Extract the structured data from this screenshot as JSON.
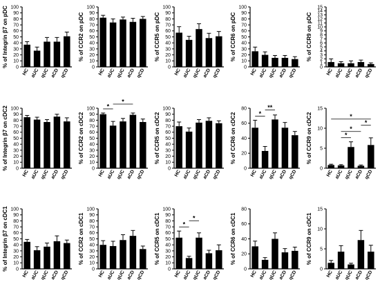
{
  "categories": [
    "HC",
    "aUC",
    "qUC",
    "aCD",
    "qCD"
  ],
  "chart_data": [
    {
      "type": "bar",
      "ylabel": "% of Integrin β7 on pDC",
      "ylim": [
        0,
        100
      ],
      "yticks": [
        0,
        10,
        20,
        30,
        40,
        50,
        60,
        70,
        80,
        90,
        100
      ],
      "values": [
        37,
        27,
        42,
        42,
        51
      ],
      "errors": [
        5,
        6,
        7,
        7,
        7
      ],
      "sig": []
    },
    {
      "type": "bar",
      "ylabel": "% of CCR2 on pDC",
      "ylim": [
        0,
        100
      ],
      "yticks": [
        0,
        10,
        20,
        30,
        40,
        50,
        60,
        70,
        80,
        90,
        100
      ],
      "values": [
        82,
        74,
        79,
        75,
        80
      ],
      "errors": [
        4,
        6,
        4,
        6,
        4
      ],
      "sig": []
    },
    {
      "type": "bar",
      "ylabel": "% of CCR5 on pDC",
      "ylim": [
        0,
        100
      ],
      "yticks": [
        0,
        10,
        20,
        30,
        40,
        50,
        60,
        70,
        80,
        90,
        100
      ],
      "values": [
        57,
        45,
        63,
        48,
        51
      ],
      "errors": [
        10,
        6,
        9,
        8,
        8
      ],
      "sig": []
    },
    {
      "type": "bar",
      "ylabel": "% of CCR6 on pDC",
      "ylim": [
        0,
        100
      ],
      "yticks": [
        0,
        10,
        20,
        30,
        40,
        50,
        60,
        70,
        80,
        90,
        100
      ],
      "values": [
        26,
        20,
        15,
        15,
        13
      ],
      "errors": [
        7,
        5,
        4,
        4,
        4
      ],
      "sig": []
    },
    {
      "type": "bar",
      "ylabel": "% of CCR9 on pDC",
      "ylim": [
        0,
        15
      ],
      "yticks": [
        0,
        1,
        2,
        3,
        4,
        5,
        6,
        7,
        8,
        9,
        10,
        11,
        12,
        13,
        14,
        15
      ],
      "values": [
        1.2,
        0.9,
        0.9,
        1.2,
        0.7
      ],
      "errors": [
        0.8,
        0.4,
        0.6,
        0.5,
        0.3
      ],
      "sig": []
    },
    {
      "type": "bar",
      "ylabel": "% of Integrin β7 on cDC2",
      "ylim": [
        0,
        100
      ],
      "yticks": [
        0,
        10,
        20,
        30,
        40,
        50,
        60,
        70,
        80,
        90,
        100
      ],
      "values": [
        85,
        81,
        77,
        86,
        78
      ],
      "errors": [
        3,
        4,
        4,
        4,
        6
      ],
      "sig": []
    },
    {
      "type": "bar",
      "ylabel": "% of CCR2 on cDC2",
      "ylim": [
        0,
        100
      ],
      "yticks": [
        0,
        10,
        20,
        30,
        40,
        50,
        60,
        70,
        80,
        90,
        100
      ],
      "values": [
        90,
        71,
        78,
        89,
        77
      ],
      "errors": [
        2,
        7,
        5,
        3,
        5
      ],
      "sig": [
        {
          "from": 0,
          "to": 1,
          "label": "*"
        },
        {
          "from": 1,
          "to": 3,
          "label": "*"
        }
      ]
    },
    {
      "type": "bar",
      "ylabel": "% of CCR5 on cDC2",
      "ylim": [
        0,
        100
      ],
      "yticks": [
        0,
        10,
        20,
        30,
        40,
        50,
        60,
        70,
        80,
        90,
        100
      ],
      "values": [
        70,
        61,
        76,
        79,
        75
      ],
      "errors": [
        7,
        6,
        5,
        5,
        4
      ],
      "sig": []
    },
    {
      "type": "bar",
      "ylabel": "% of CCR6 on cDC2",
      "ylim": [
        0,
        80
      ],
      "yticks": [
        0,
        20,
        40,
        60,
        80
      ],
      "values": [
        54,
        23,
        65,
        54,
        44
      ],
      "errors": [
        10,
        6,
        6,
        7,
        5
      ],
      "sig": [
        {
          "from": 0,
          "to": 1,
          "label": "*"
        },
        {
          "from": 1,
          "to": 2,
          "label": "**"
        }
      ]
    },
    {
      "type": "bar",
      "ylabel": "% of CCR9 on cDC2",
      "ylim": [
        0,
        15
      ],
      "yticks": [
        0,
        5,
        10,
        15
      ],
      "values": [
        0.8,
        0.7,
        5.3,
        0.6,
        5.8
      ],
      "errors": [
        0.2,
        0.2,
        1.3,
        0.2,
        1.8
      ],
      "sig": [
        {
          "from": 1,
          "to": 2,
          "label": "*"
        },
        {
          "from": 1,
          "to": 3,
          "label": "*"
        },
        {
          "from": 3,
          "to": 4,
          "label": "*"
        },
        {
          "from": 0,
          "to": 4,
          "label": "*"
        }
      ]
    },
    {
      "type": "bar",
      "ylabel": "% of Integrin β7 on cDC1",
      "ylim": [
        0,
        100
      ],
      "yticks": [
        0,
        10,
        20,
        30,
        40,
        50,
        60,
        70,
        80,
        90,
        100
      ],
      "values": [
        45,
        31,
        37,
        46,
        43
      ],
      "errors": [
        4,
        6,
        6,
        9,
        5
      ],
      "sig": []
    },
    {
      "type": "bar",
      "ylabel": "% of CCR2 on cDC1",
      "ylim": [
        0,
        100
      ],
      "yticks": [
        0,
        10,
        20,
        30,
        40,
        50,
        60,
        70,
        80,
        90,
        100
      ],
      "values": [
        40,
        38,
        48,
        55,
        33
      ],
      "errors": [
        7,
        8,
        9,
        9,
        5
      ],
      "sig": []
    },
    {
      "type": "bar",
      "ylabel": "% of CCR5 on cDC1",
      "ylim": [
        0,
        100
      ],
      "yticks": [
        0,
        10,
        20,
        30,
        40,
        50,
        60,
        70,
        80,
        90,
        100
      ],
      "values": [
        52,
        18,
        52,
        26,
        31
      ],
      "errors": [
        11,
        3,
        8,
        5,
        9
      ],
      "sig": [
        {
          "from": 0,
          "to": 1,
          "label": "*"
        },
        {
          "from": 1,
          "to": 2,
          "label": "*"
        }
      ]
    },
    {
      "type": "bar",
      "ylabel": "% of CCR6 on cDC1",
      "ylim": [
        0,
        80
      ],
      "yticks": [
        0,
        20,
        40,
        60,
        80
      ],
      "values": [
        30,
        12,
        40,
        22,
        24
      ],
      "errors": [
        7,
        3,
        8,
        5,
        5
      ],
      "sig": []
    },
    {
      "type": "bar",
      "ylabel": "% of CCR9 on cDC1",
      "ylim": [
        0,
        15
      ],
      "yticks": [
        0,
        5,
        10,
        15
      ],
      "values": [
        1.5,
        4.3,
        1.1,
        7.2,
        4.3
      ],
      "errors": [
        0.6,
        1.5,
        0.3,
        2.4,
        1.6
      ],
      "sig": []
    }
  ]
}
